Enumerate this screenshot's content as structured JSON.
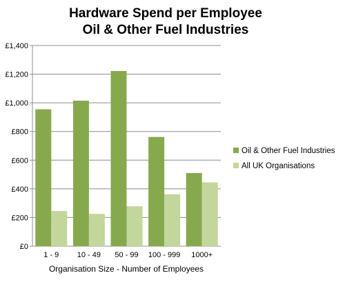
{
  "chart_data": {
    "type": "bar",
    "title": [
      "Hardware Spend per Employee",
      "Oil & Other Fuel Industries"
    ],
    "xlabel": "Organisation Size - Number of Employees",
    "ylabel": "",
    "categories": [
      "1 - 9",
      "10 - 49",
      "50 - 99",
      "100 - 999",
      "1000+"
    ],
    "series": [
      {
        "name": "Oil & Other Fuel Industries",
        "values": [
          955,
          1015,
          1222,
          762,
          510
        ],
        "color": "#86a94e"
      },
      {
        "name": "All UK Organisations",
        "values": [
          245,
          225,
          278,
          362,
          445
        ],
        "color": "#c3d69b"
      }
    ],
    "ylim": [
      0,
      1400
    ],
    "yticks": [
      0,
      200,
      400,
      600,
      800,
      1000,
      1200,
      1400
    ],
    "ytick_labels": [
      "£0",
      "£200",
      "£400",
      "£600",
      "£800",
      "£1,000",
      "£1,200",
      "£1,400"
    ],
    "grid": true,
    "legend_position": "right"
  }
}
